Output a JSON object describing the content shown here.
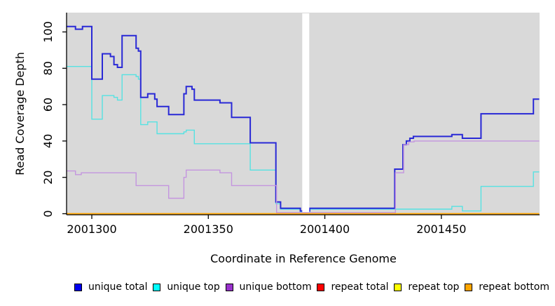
{
  "chart_data": {
    "type": "line",
    "subtype": "step",
    "title": "",
    "xlabel": "Coordinate in Reference Genome",
    "ylabel": "Read Coverage Depth",
    "xlim": [
      2001289.2,
      2001492
    ],
    "ylim": [
      0,
      110
    ],
    "grid": "off",
    "legend_position": "bottom",
    "plot_background": "#D9D9D9",
    "page_background": "#FFFFFF",
    "axis_color": "#000000",
    "x_ticks": [
      {
        "value": 2001300,
        "label": "2001300"
      },
      {
        "value": 2001350,
        "label": "2001350"
      },
      {
        "value": 2001400,
        "label": "2001400"
      },
      {
        "value": 2001450,
        "label": "2001450"
      }
    ],
    "y_ticks": [
      {
        "value": 0,
        "label": "0"
      },
      {
        "value": 20,
        "label": "20"
      },
      {
        "value": 40,
        "label": "40"
      },
      {
        "value": 60,
        "label": "60"
      },
      {
        "value": 80,
        "label": "80"
      },
      {
        "value": 100,
        "label": "100"
      }
    ],
    "masked_region": {
      "x_start": 2001390.3,
      "x_end": 2001393.3,
      "color": "#FFFFFF"
    },
    "series": [
      {
        "name": "unique total",
        "line_color": "#2929D6",
        "legend_color": "#0000EE",
        "points": [
          [
            2001289.2,
            103
          ],
          [
            2001293,
            101.5
          ],
          [
            2001296,
            103
          ],
          [
            2001300,
            74
          ],
          [
            2001304.5,
            88
          ],
          [
            2001308,
            86.5
          ],
          [
            2001309.5,
            82
          ],
          [
            2001311,
            80.5
          ],
          [
            2001313,
            98
          ],
          [
            2001319,
            91
          ],
          [
            2001320,
            89.5
          ],
          [
            2001321,
            64
          ],
          [
            2001324,
            66
          ],
          [
            2001327,
            63
          ],
          [
            2001328,
            59
          ],
          [
            2001333,
            54.5
          ],
          [
            2001339.5,
            66
          ],
          [
            2001340.5,
            70
          ],
          [
            2001343,
            68.5
          ],
          [
            2001344,
            62.5
          ],
          [
            2001355,
            61
          ],
          [
            2001360,
            53
          ],
          [
            2001368,
            39
          ],
          [
            2001379,
            6.5
          ],
          [
            2001381,
            3
          ],
          [
            2001389.5,
            1.5
          ],
          [
            2001393.5,
            3
          ],
          [
            2001430,
            24.5
          ],
          [
            2001433.5,
            38
          ],
          [
            2001435,
            40
          ],
          [
            2001436.5,
            41.5
          ],
          [
            2001438,
            42.5
          ],
          [
            2001454.5,
            43.5
          ],
          [
            2001459,
            41.5
          ],
          [
            2001467,
            55
          ],
          [
            2001489.5,
            63
          ],
          [
            2001492,
            63
          ]
        ]
      },
      {
        "name": "unique top",
        "line_color": "#55E2E2",
        "legend_color": "#00FFFF",
        "points": [
          [
            2001289.2,
            81
          ],
          [
            2001300,
            52
          ],
          [
            2001304.5,
            65
          ],
          [
            2001309.5,
            64
          ],
          [
            2001311,
            62.5
          ],
          [
            2001313,
            76.5
          ],
          [
            2001319,
            75.5
          ],
          [
            2001320,
            74
          ],
          [
            2001321,
            49
          ],
          [
            2001324,
            50.5
          ],
          [
            2001328,
            44
          ],
          [
            2001339.5,
            45
          ],
          [
            2001340.5,
            46
          ],
          [
            2001344,
            38.5
          ],
          [
            2001368,
            24
          ],
          [
            2001379,
            5.5
          ],
          [
            2001381,
            2.5
          ],
          [
            2001389.5,
            1
          ],
          [
            2001393.5,
            2.5
          ],
          [
            2001454.5,
            4
          ],
          [
            2001459,
            1.5
          ],
          [
            2001467,
            15
          ],
          [
            2001489.5,
            23
          ],
          [
            2001492,
            23
          ]
        ]
      },
      {
        "name": "unique bottom",
        "line_color": "#C495DF",
        "legend_color": "#9932CC",
        "points": [
          [
            2001289.2,
            23.5
          ],
          [
            2001293,
            21.5
          ],
          [
            2001295.5,
            22.5
          ],
          [
            2001319,
            15.5
          ],
          [
            2001333,
            8.5
          ],
          [
            2001339.5,
            20
          ],
          [
            2001340.5,
            24
          ],
          [
            2001355,
            22.5
          ],
          [
            2001360,
            15.5
          ],
          [
            2001379.3,
            0.6
          ],
          [
            2001430.3,
            22.5
          ],
          [
            2001433.8,
            38
          ],
          [
            2001436,
            39.5
          ],
          [
            2001438.3,
            40
          ],
          [
            2001492,
            40
          ]
        ]
      },
      {
        "name": "repeat total",
        "line_color": "#FF2222",
        "legend_color": "#FF0000",
        "points": [
          [
            2001289.2,
            0
          ],
          [
            2001492,
            0
          ]
        ]
      },
      {
        "name": "repeat top",
        "line_color": "#FFFF33",
        "legend_color": "#FFFF00",
        "points": [
          [
            2001289.2,
            0
          ],
          [
            2001492,
            0
          ]
        ]
      },
      {
        "name": "repeat bottom",
        "line_color": "#FFA500",
        "legend_color": "#FFA500",
        "points": [
          [
            2001289.2,
            0
          ],
          [
            2001492,
            0
          ]
        ]
      }
    ]
  }
}
